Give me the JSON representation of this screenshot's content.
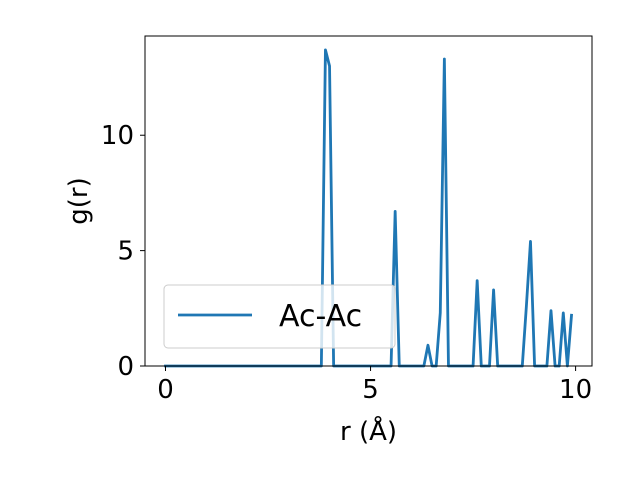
{
  "chart_data": {
    "type": "line",
    "xlabel": "r (Å)",
    "ylabel": "g(r)",
    "xlim": [
      -0.5,
      10.4
    ],
    "ylim": [
      0,
      14.3
    ],
    "xticks": [
      0,
      5,
      10
    ],
    "yticks": [
      0,
      5,
      10
    ],
    "grid": false,
    "legend_position": "lower-left",
    "series": [
      {
        "name": "Ac-Ac",
        "color": "#1f77b4",
        "x": [
          0.0,
          0.1,
          0.2,
          0.3,
          0.4,
          0.5,
          0.6,
          0.7,
          0.8,
          0.9,
          1.0,
          1.1,
          1.2,
          1.3,
          1.4,
          1.5,
          1.6,
          1.7,
          1.8,
          1.9,
          2.0,
          2.1,
          2.2,
          2.3,
          2.4,
          2.5,
          2.6,
          2.7,
          2.8,
          2.9,
          3.0,
          3.1,
          3.2,
          3.3,
          3.4,
          3.5,
          3.6,
          3.7,
          3.8,
          3.9,
          4.0,
          4.1,
          4.2,
          4.3,
          4.4,
          4.5,
          4.6,
          4.7,
          4.8,
          4.9,
          5.0,
          5.1,
          5.2,
          5.3,
          5.4,
          5.5,
          5.6,
          5.7,
          5.8,
          5.9,
          6.0,
          6.1,
          6.2,
          6.3,
          6.4,
          6.5,
          6.6,
          6.7,
          6.8,
          6.9,
          7.0,
          7.1,
          7.2,
          7.3,
          7.4,
          7.5,
          7.6,
          7.7,
          7.8,
          7.9,
          8.0,
          8.1,
          8.2,
          8.3,
          8.4,
          8.5,
          8.6,
          8.7,
          8.8,
          8.9,
          9.0,
          9.1,
          9.2,
          9.3,
          9.4,
          9.5,
          9.6,
          9.7,
          9.8,
          9.9
        ],
        "values": [
          0,
          0,
          0,
          0,
          0,
          0,
          0,
          0,
          0,
          0,
          0,
          0,
          0,
          0,
          0,
          0,
          0,
          0,
          0,
          0,
          0,
          0,
          0,
          0,
          0,
          0,
          0,
          0,
          0,
          0,
          0,
          0,
          0,
          0,
          0,
          0,
          0,
          0,
          0,
          13.7,
          13.0,
          0,
          0,
          0,
          0,
          0,
          0,
          0,
          0,
          0,
          0,
          0,
          0,
          0,
          0,
          0,
          6.7,
          0,
          0,
          0,
          0,
          0,
          0,
          0,
          0.9,
          0,
          0,
          2.3,
          13.3,
          0,
          0,
          0,
          0,
          0,
          0,
          0,
          3.7,
          0,
          0,
          0,
          3.3,
          0,
          0,
          0,
          0,
          0,
          0,
          0,
          2.6,
          5.4,
          0,
          0,
          0,
          0,
          2.4,
          0,
          0,
          2.3,
          0,
          2.2
        ]
      }
    ]
  }
}
